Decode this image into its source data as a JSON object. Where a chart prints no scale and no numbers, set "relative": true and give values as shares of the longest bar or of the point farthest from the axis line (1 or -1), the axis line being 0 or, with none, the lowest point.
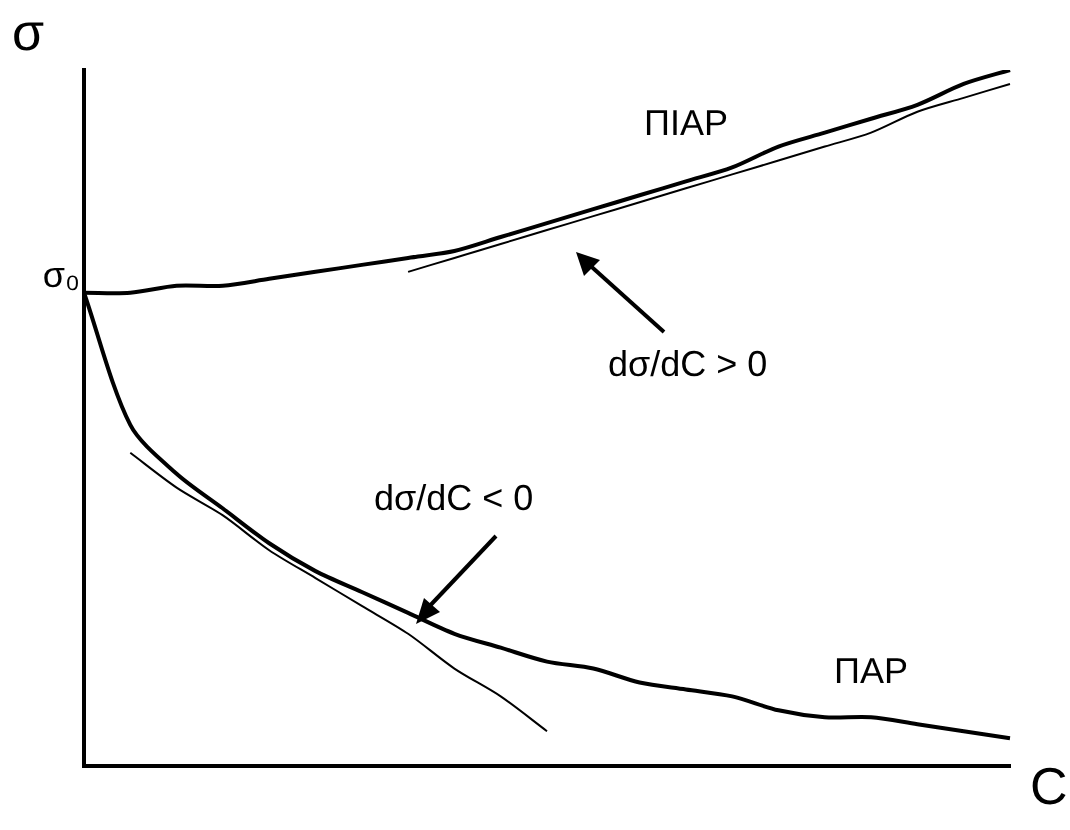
{
  "chart_data": {
    "type": "line",
    "relative": true,
    "ylabel": "σ",
    "xlabel": "C",
    "legend": false,
    "marker": "none",
    "grid": false,
    "categories": [
      null,
      null,
      null,
      null,
      null,
      null,
      null,
      null,
      null,
      null,
      null,
      null,
      null,
      null,
      null,
      null,
      null,
      null,
      null,
      null,
      null
    ],
    "series": [
      {
        "name": "ΠIAP",
        "color": "#000000",
        "values": [
          0.68,
          0.68,
          0.69,
          0.69,
          0.7,
          0.71,
          0.72,
          0.73,
          0.74,
          0.76,
          0.78,
          0.8,
          0.82,
          0.84,
          0.86,
          0.89,
          0.91,
          0.93,
          0.95,
          0.98,
          1
        ]
      },
      {
        "name": "ΠAP",
        "color": "#000000",
        "values": [
          0.68,
          0.49,
          0.42,
          0.37,
          0.32,
          0.28,
          0.25,
          0.22,
          0.19,
          0.17,
          0.15,
          0.14,
          0.12,
          0.11,
          0.1,
          0.08,
          0.07,
          0.07,
          0.06,
          0.05,
          0.04
        ]
      },
      {
        "color": "#000000",
        "values": [
          null,
          null,
          null,
          null,
          null,
          null,
          null,
          0.71,
          0.73,
          0.75,
          0.77,
          0.79,
          0.81,
          0.83,
          0.85,
          0.87,
          0.89,
          0.91,
          0.94,
          0.96,
          0.98
        ]
      },
      {
        "color": "#000000",
        "values": [
          null,
          0.45,
          0.4,
          0.36,
          0.31,
          0.27,
          0.23,
          0.19,
          0.14,
          0.1,
          0.05,
          null,
          null,
          null,
          null,
          null,
          null,
          null,
          null,
          null,
          null
        ]
      }
    ],
    "annotations": [
      "σ₀",
      "dσ/dC > 0",
      "dσ/dC < 0"
    ]
  }
}
